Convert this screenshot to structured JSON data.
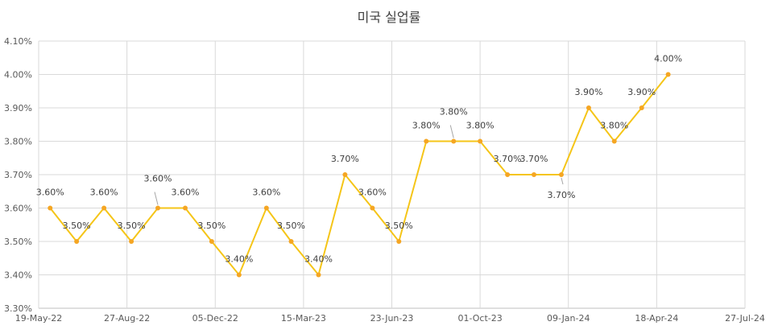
{
  "chart_data": {
    "type": "line",
    "title": "미국 실업률",
    "xlabel": "",
    "ylabel": "",
    "x_ticks": [
      "19-May-22",
      "27-Aug-22",
      "05-Dec-22",
      "15-Mar-23",
      "23-Jun-23",
      "01-Oct-23",
      "09-Jan-24",
      "18-Apr-24",
      "27-Jul-24"
    ],
    "xlim": [
      "2022-05-19",
      "2024-07-27"
    ],
    "ylim": [
      3.3,
      4.1
    ],
    "y_ticks": [
      3.3,
      3.4,
      3.5,
      3.6,
      3.7,
      3.8,
      3.9,
      4.0,
      4.1
    ],
    "y_tick_labels": [
      "3.30%",
      "3.40%",
      "3.50%",
      "3.60%",
      "3.70%",
      "3.80%",
      "3.90%",
      "4.00%",
      "4.10%"
    ],
    "grid": true,
    "series_color": "#F5C518",
    "marker_color": "#F5A623",
    "points": [
      {
        "x": "2022-06-01",
        "y": 3.6,
        "label": "3.60%",
        "pos": "above"
      },
      {
        "x": "2022-07-01",
        "y": 3.5,
        "label": "3.50%",
        "pos": "above"
      },
      {
        "x": "2022-08-01",
        "y": 3.6,
        "label": "3.60%",
        "pos": "above"
      },
      {
        "x": "2022-09-01",
        "y": 3.5,
        "label": "3.50%",
        "pos": "above"
      },
      {
        "x": "2022-10-01",
        "y": 3.6,
        "label": "3.60%",
        "pos": "leader-up"
      },
      {
        "x": "2022-11-01",
        "y": 3.6,
        "label": "3.60%",
        "pos": "above"
      },
      {
        "x": "2022-12-01",
        "y": 3.5,
        "label": "3.50%",
        "pos": "above"
      },
      {
        "x": "2023-01-01",
        "y": 3.4,
        "label": "3.40%",
        "pos": "above"
      },
      {
        "x": "2023-02-01",
        "y": 3.6,
        "label": "3.60%",
        "pos": "above"
      },
      {
        "x": "2023-03-01",
        "y": 3.5,
        "label": "3.50%",
        "pos": "above"
      },
      {
        "x": "2023-04-01",
        "y": 3.4,
        "label": "3.40%",
        "pos": "above"
      },
      {
        "x": "2023-05-01",
        "y": 3.7,
        "label": "3.70%",
        "pos": "above"
      },
      {
        "x": "2023-06-01",
        "y": 3.6,
        "label": "3.60%",
        "pos": "above"
      },
      {
        "x": "2023-07-01",
        "y": 3.5,
        "label": "3.50%",
        "pos": "above"
      },
      {
        "x": "2023-08-01",
        "y": 3.8,
        "label": "3.80%",
        "pos": "above"
      },
      {
        "x": "2023-09-01",
        "y": 3.8,
        "label": "3.80%",
        "pos": "leader-up"
      },
      {
        "x": "2023-10-01",
        "y": 3.8,
        "label": "3.80%",
        "pos": "above"
      },
      {
        "x": "2023-11-01",
        "y": 3.7,
        "label": "3.70%",
        "pos": "above"
      },
      {
        "x": "2023-12-01",
        "y": 3.7,
        "label": "3.70%",
        "pos": "above"
      },
      {
        "x": "2024-01-01",
        "y": 3.7,
        "label": "3.70%",
        "pos": "leader-down"
      },
      {
        "x": "2024-02-01",
        "y": 3.9,
        "label": "3.90%",
        "pos": "above"
      },
      {
        "x": "2024-03-01",
        "y": 3.8,
        "label": "3.80%",
        "pos": "above"
      },
      {
        "x": "2024-04-01",
        "y": 3.9,
        "label": "3.90%",
        "pos": "above"
      },
      {
        "x": "2024-05-01",
        "y": 4.0,
        "label": "4.00%",
        "pos": "above"
      }
    ]
  }
}
